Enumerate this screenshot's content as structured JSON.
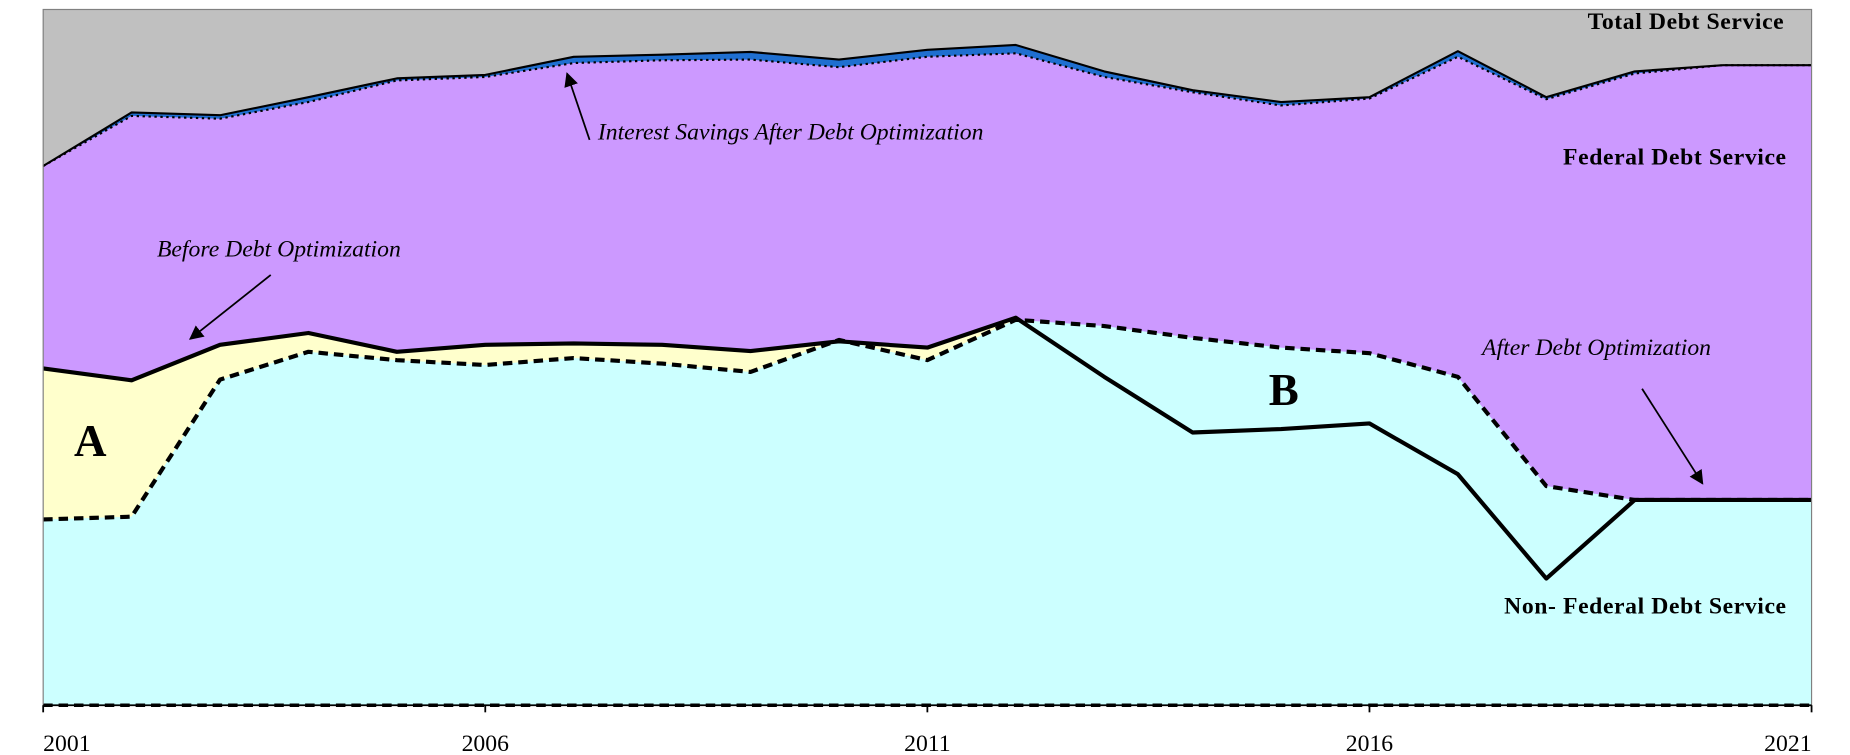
{
  "chart_data": {
    "type": "area",
    "x": [
      2001,
      2002,
      2003,
      2004,
      2005,
      2006,
      2007,
      2008,
      2009,
      2010,
      2011,
      2012,
      2013,
      2014,
      2015,
      2016,
      2017,
      2018,
      2019,
      2020,
      2021
    ],
    "xlim": [
      2001,
      2021
    ],
    "xticks": [
      2001,
      2006,
      2011,
      2016,
      2021
    ],
    "ylim": [
      0,
      100
    ],
    "background": "#c0c0c0",
    "series": [
      {
        "color": "#1f6fd0",
        "line": "solid",
        "values": [
          77.5,
          85.2,
          84.8,
          87.4,
          90.1,
          90.6,
          93.2,
          93.5,
          93.9,
          92.8,
          94.2,
          94.9,
          91.1,
          88.4,
          86.7,
          87.4,
          94.0,
          87.4,
          91.1,
          92.0,
          92.0
        ]
      },
      {
        "color": "#cc99ff",
        "line": "dotted",
        "values": [
          77.5,
          84.7,
          84.3,
          86.7,
          89.8,
          90.3,
          92.3,
          92.7,
          92.8,
          91.7,
          93.2,
          93.7,
          90.3,
          88.1,
          86.2,
          87.2,
          93.2,
          87.1,
          90.8,
          92.0,
          92.0
        ]
      },
      {
        "color": "#ffffcc",
        "line": "solid",
        "values": [
          48.4,
          46.7,
          51.8,
          53.5,
          50.8,
          51.8,
          52.0,
          51.8,
          50.9,
          52.3,
          51.4,
          55.7,
          47.2,
          39.2,
          39.7,
          40.5,
          33.2,
          18.2,
          29.5,
          29.5,
          29.5
        ]
      },
      {
        "color": "#ccffff",
        "line": "dashed",
        "values": [
          26.7,
          27.1,
          46.8,
          50.8,
          49.6,
          48.9,
          49.9,
          49.1,
          47.9,
          52.5,
          49.6,
          55.4,
          54.5,
          52.8,
          51.4,
          50.6,
          47.2,
          31.5,
          29.5,
          29.5,
          29.5
        ]
      }
    ],
    "annotations": [
      "Total Debt Service",
      "Federal Debt Service",
      "Non- Federal Debt Service",
      "Interest Savings After Debt Optimization",
      "Before Debt Optimization",
      "After Debt Optimization",
      "A",
      "B"
    ]
  }
}
